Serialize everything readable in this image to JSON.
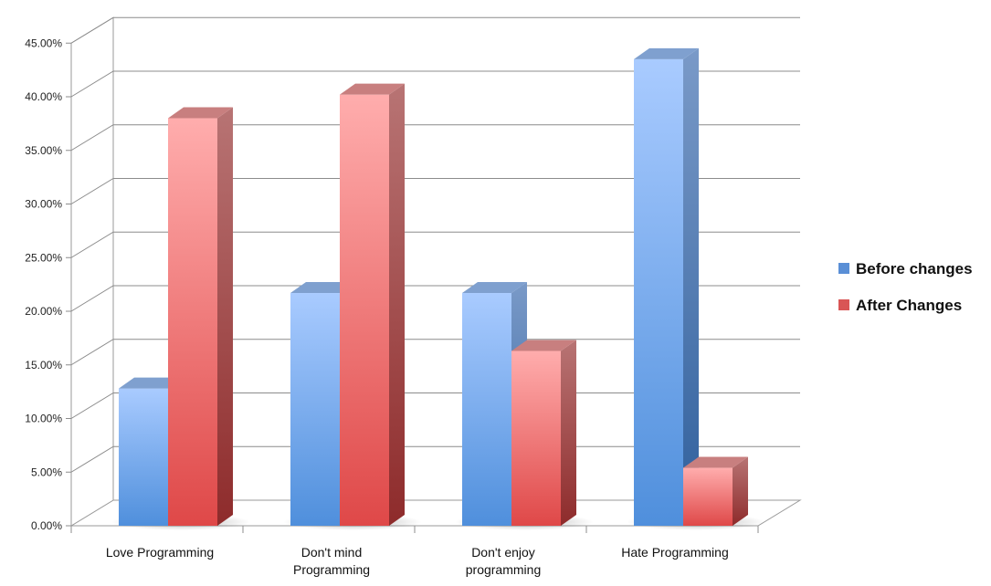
{
  "chart_data": {
    "type": "bar",
    "style": "3d-clustered-column",
    "categories": [
      [
        "Love Programming"
      ],
      [
        "Don't mind",
        "Programming"
      ],
      [
        "Don't enjoy",
        "programming"
      ],
      [
        "Hate Programming"
      ]
    ],
    "series": [
      {
        "name": "Before changes",
        "color": "#5a8fd6",
        "values": [
          12.8,
          21.7,
          21.7,
          43.5
        ]
      },
      {
        "name": "After Changes",
        "color": "#d95555",
        "values": [
          38.0,
          40.2,
          16.3,
          5.4
        ]
      }
    ],
    "y_ticks": [
      "0.00%",
      "5.00%",
      "10.00%",
      "15.00%",
      "20.00%",
      "25.00%",
      "30.00%",
      "35.00%",
      "40.00%",
      "45.00%"
    ],
    "ylim": [
      0,
      45
    ],
    "grid": true,
    "legend_position": "right"
  }
}
